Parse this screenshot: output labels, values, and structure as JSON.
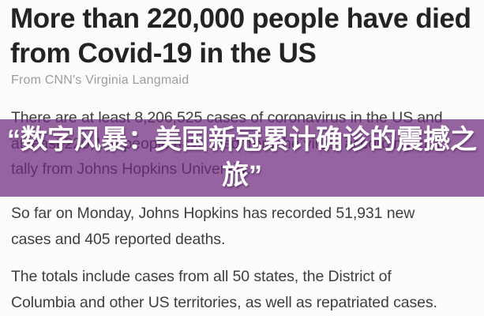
{
  "article": {
    "headline": "More than 220,000 people have died from Covid-19 in the US",
    "byline": "From CNN's Virginia Langmaid",
    "paragraphs": [
      {
        "lines": [
          "There are at least 8,206,525 cases of coronavirus in the US and",
          "at least 220,134 people have died from the virus, according to a",
          "tally from Johns Hopkins University."
        ]
      },
      {
        "lines": [
          "So far on Monday, Johns Hopkins has recorded 51,931 new",
          "cases and 405 reported deaths."
        ]
      },
      {
        "lines": [
          "The totals include cases from all 50 states, the District of",
          "Columbia and other US territories, as well as repatriated cases."
        ]
      }
    ]
  },
  "overlay": {
    "lines": [
      "“数字风暴：美国新冠累计确诊的震撼之",
      "旅”"
    ],
    "text_color": "#ffffff",
    "band_color": "#95639e"
  },
  "colors": {
    "headline": "#232323",
    "byline": "#9c9c9c",
    "body_text": "#3e3e3e",
    "page_background": "#fcfcfc"
  }
}
